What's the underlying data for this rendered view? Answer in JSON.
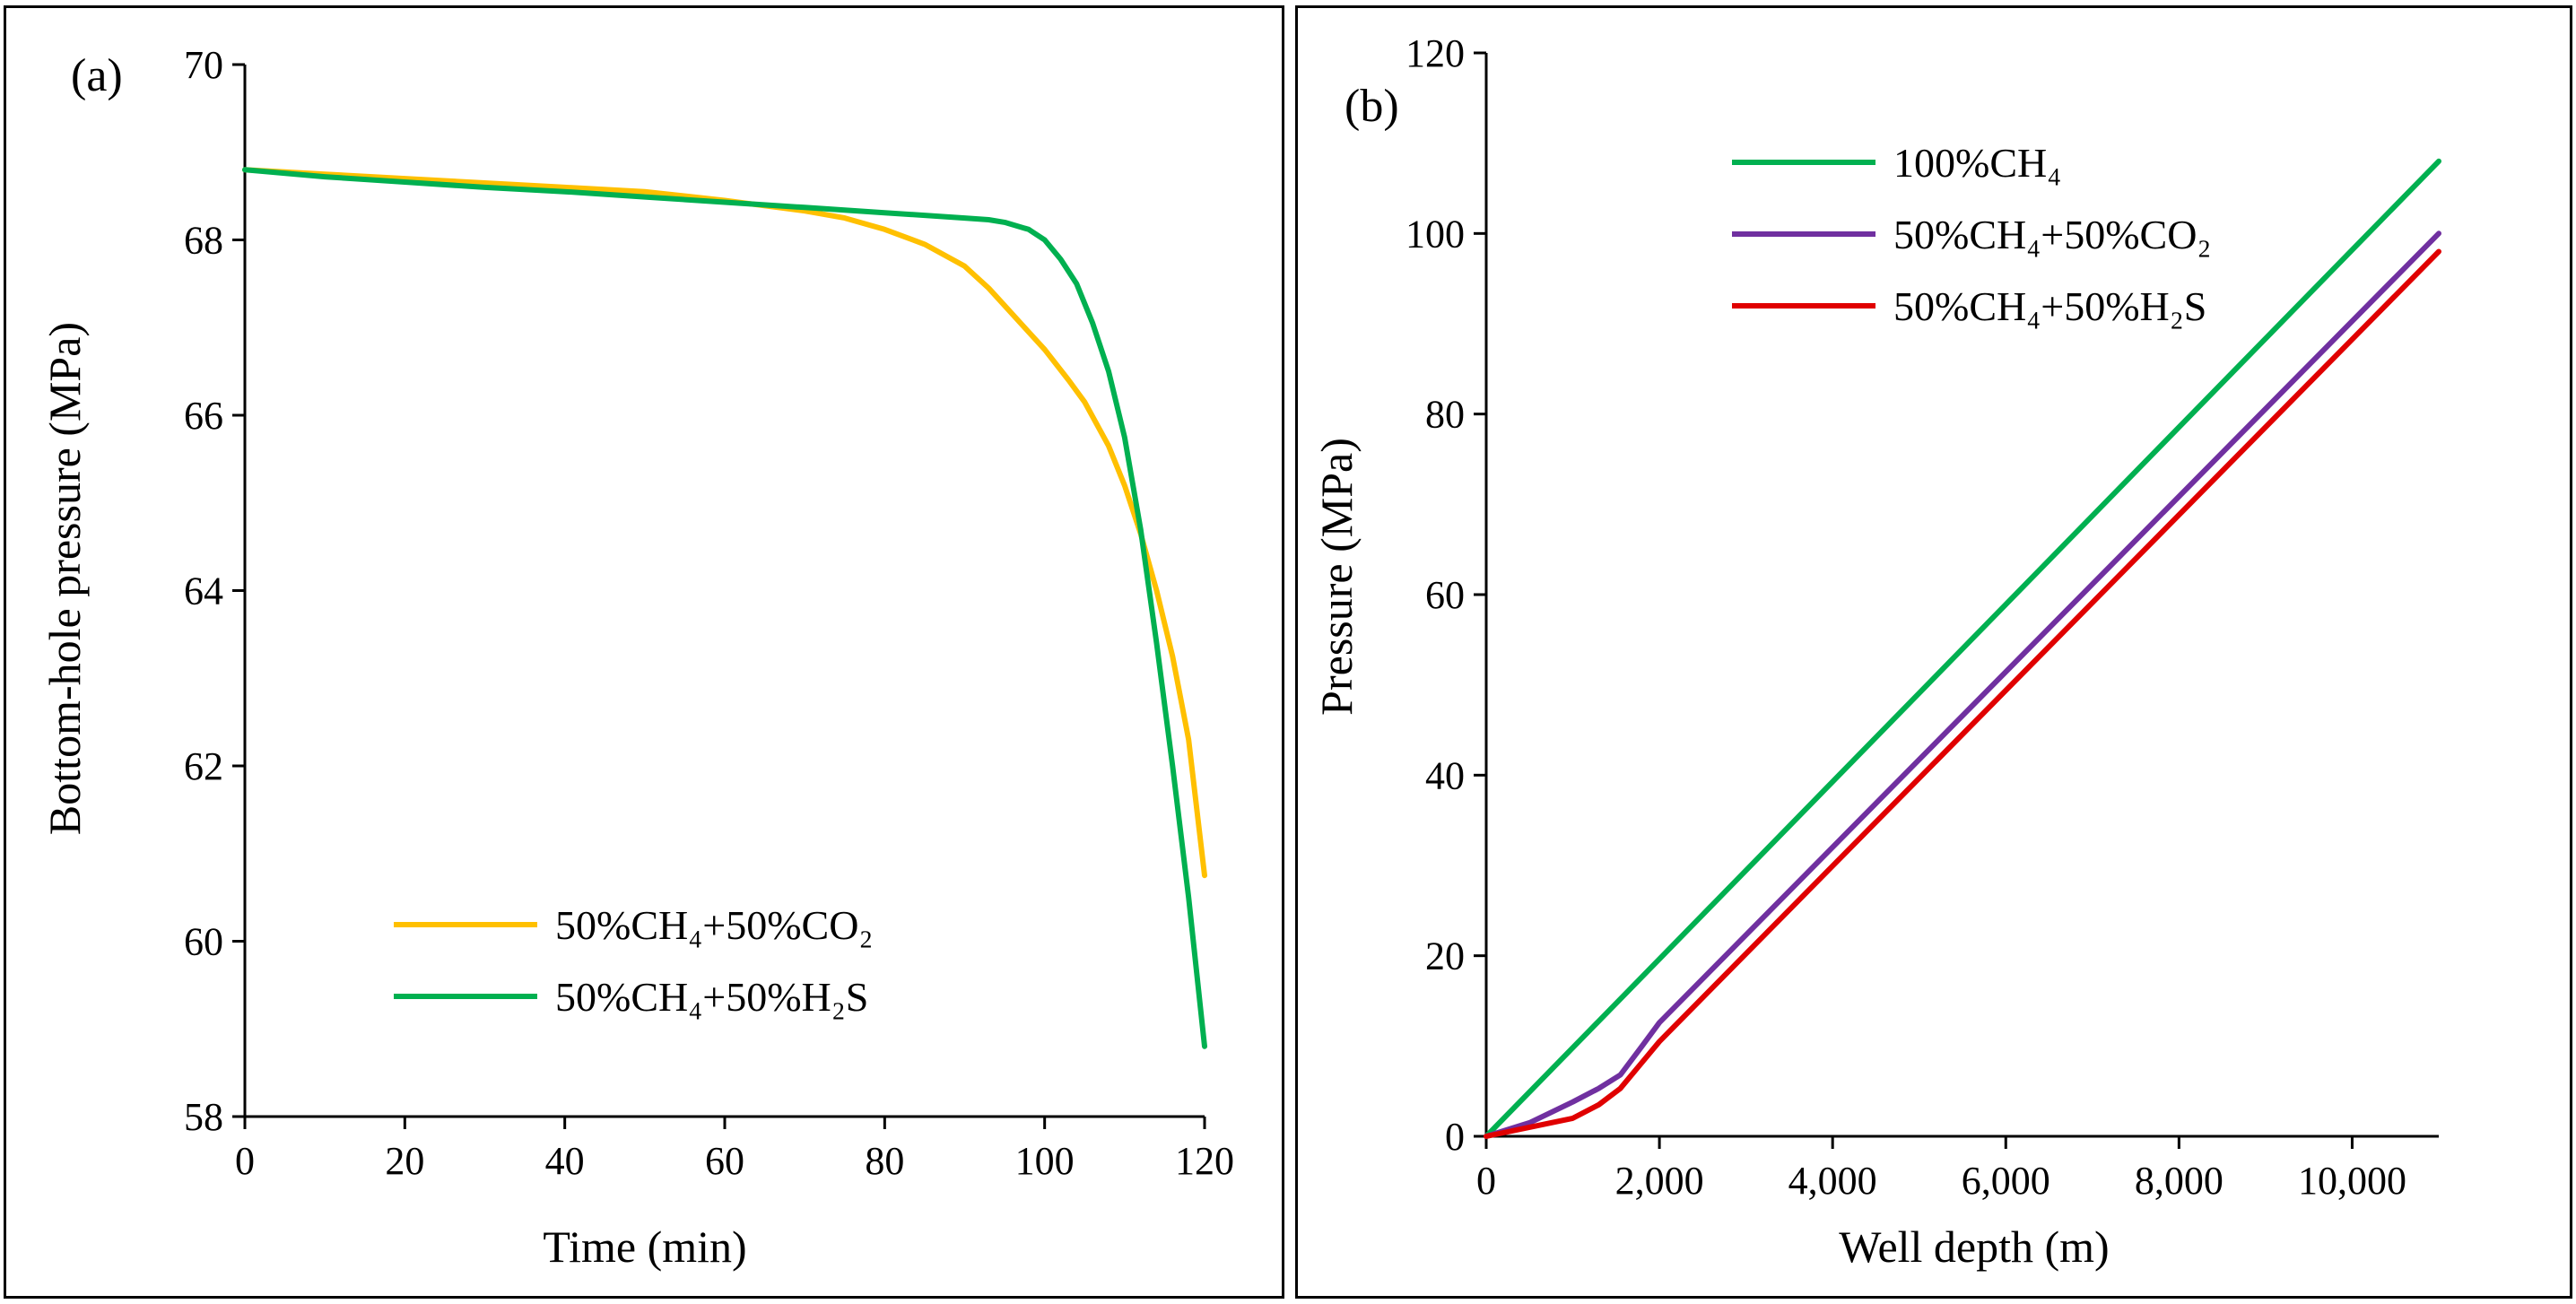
{
  "chart_data": [
    {
      "type": "line",
      "panel_label": "(a)",
      "xlabel": "Time (min)",
      "ylabel": "Bottom-hole pressure (MPa)",
      "xlim": [
        0,
        120
      ],
      "ylim": [
        58,
        70
      ],
      "xticks": [
        0,
        20,
        40,
        60,
        80,
        100,
        120
      ],
      "yticks": [
        58,
        60,
        62,
        64,
        66,
        68,
        70
      ],
      "xtick_labels": [
        "0",
        "20",
        "40",
        "60",
        "80",
        "100",
        "120"
      ],
      "ytick_labels": [
        "58",
        "60",
        "62",
        "64",
        "66",
        "68",
        "70"
      ],
      "grid": false,
      "legend_position": "bottom-center",
      "series": [
        {
          "name": "50%CH₄+50%CO₂",
          "color": "#FFC000",
          "points": [
            [
              0,
              68.8
            ],
            [
              10,
              68.75
            ],
            [
              20,
              68.7
            ],
            [
              30,
              68.65
            ],
            [
              40,
              68.6
            ],
            [
              50,
              68.55
            ],
            [
              60,
              68.45
            ],
            [
              70,
              68.33
            ],
            [
              75,
              68.25
            ],
            [
              80,
              68.12
            ],
            [
              85,
              67.95
            ],
            [
              90,
              67.7
            ],
            [
              93,
              67.45
            ],
            [
              95,
              67.25
            ],
            [
              98,
              66.95
            ],
            [
              100,
              66.75
            ],
            [
              103,
              66.4
            ],
            [
              105,
              66.15
            ],
            [
              108,
              65.65
            ],
            [
              110,
              65.2
            ],
            [
              112,
              64.65
            ],
            [
              114,
              64.0
            ],
            [
              116,
              63.25
            ],
            [
              118,
              62.3
            ],
            [
              120,
              60.75
            ]
          ]
        },
        {
          "name": "50%CH₄+50%H₂S",
          "color": "#00B050",
          "points": [
            [
              0,
              68.8
            ],
            [
              10,
              68.72
            ],
            [
              20,
              68.66
            ],
            [
              30,
              68.6
            ],
            [
              40,
              68.55
            ],
            [
              50,
              68.49
            ],
            [
              60,
              68.43
            ],
            [
              70,
              68.37
            ],
            [
              80,
              68.31
            ],
            [
              90,
              68.25
            ],
            [
              93,
              68.23
            ],
            [
              95,
              68.2
            ],
            [
              98,
              68.12
            ],
            [
              100,
              68.0
            ],
            [
              102,
              67.78
            ],
            [
              104,
              67.5
            ],
            [
              106,
              67.05
            ],
            [
              108,
              66.5
            ],
            [
              110,
              65.75
            ],
            [
              112,
              64.7
            ],
            [
              114,
              63.4
            ],
            [
              116,
              62.0
            ],
            [
              118,
              60.5
            ],
            [
              120,
              58.8
            ]
          ]
        }
      ]
    },
    {
      "type": "line",
      "panel_label": "(b)",
      "xlabel": "Well depth (m)",
      "ylabel": "Pressure (MPa)",
      "xlim": [
        0,
        11000
      ],
      "ylim": [
        0,
        120
      ],
      "xticks": [
        0,
        2000,
        4000,
        6000,
        8000,
        10000
      ],
      "yticks": [
        0,
        20,
        40,
        60,
        80,
        100,
        120
      ],
      "xtick_labels": [
        "0",
        "2,000",
        "4,000",
        "6,000",
        "8,000",
        "10,000"
      ],
      "ytick_labels": [
        "0",
        "20",
        "40",
        "60",
        "80",
        "100",
        "120"
      ],
      "grid": false,
      "legend_position": "top-center",
      "series": [
        {
          "name": "100%CH₄",
          "color": "#00B050",
          "points": [
            [
              0,
              0
            ],
            [
              11000,
              108
            ]
          ]
        },
        {
          "name": "50%CH₄+50%CO₂",
          "color": "#7030A0",
          "points": [
            [
              0,
              0
            ],
            [
              500,
              1.5
            ],
            [
              1000,
              3.8
            ],
            [
              1300,
              5.3
            ],
            [
              1550,
              6.8
            ],
            [
              1800,
              10
            ],
            [
              2000,
              12.6
            ],
            [
              11000,
              100
            ]
          ]
        },
        {
          "name": "50%CH₄+50%H₂S",
          "color": "#E00000",
          "points": [
            [
              0,
              0
            ],
            [
              500,
              1.0
            ],
            [
              1000,
              2.0
            ],
            [
              1300,
              3.5
            ],
            [
              1550,
              5.3
            ],
            [
              1800,
              8.2
            ],
            [
              2000,
              10.5
            ],
            [
              11000,
              98
            ]
          ]
        }
      ]
    }
  ]
}
